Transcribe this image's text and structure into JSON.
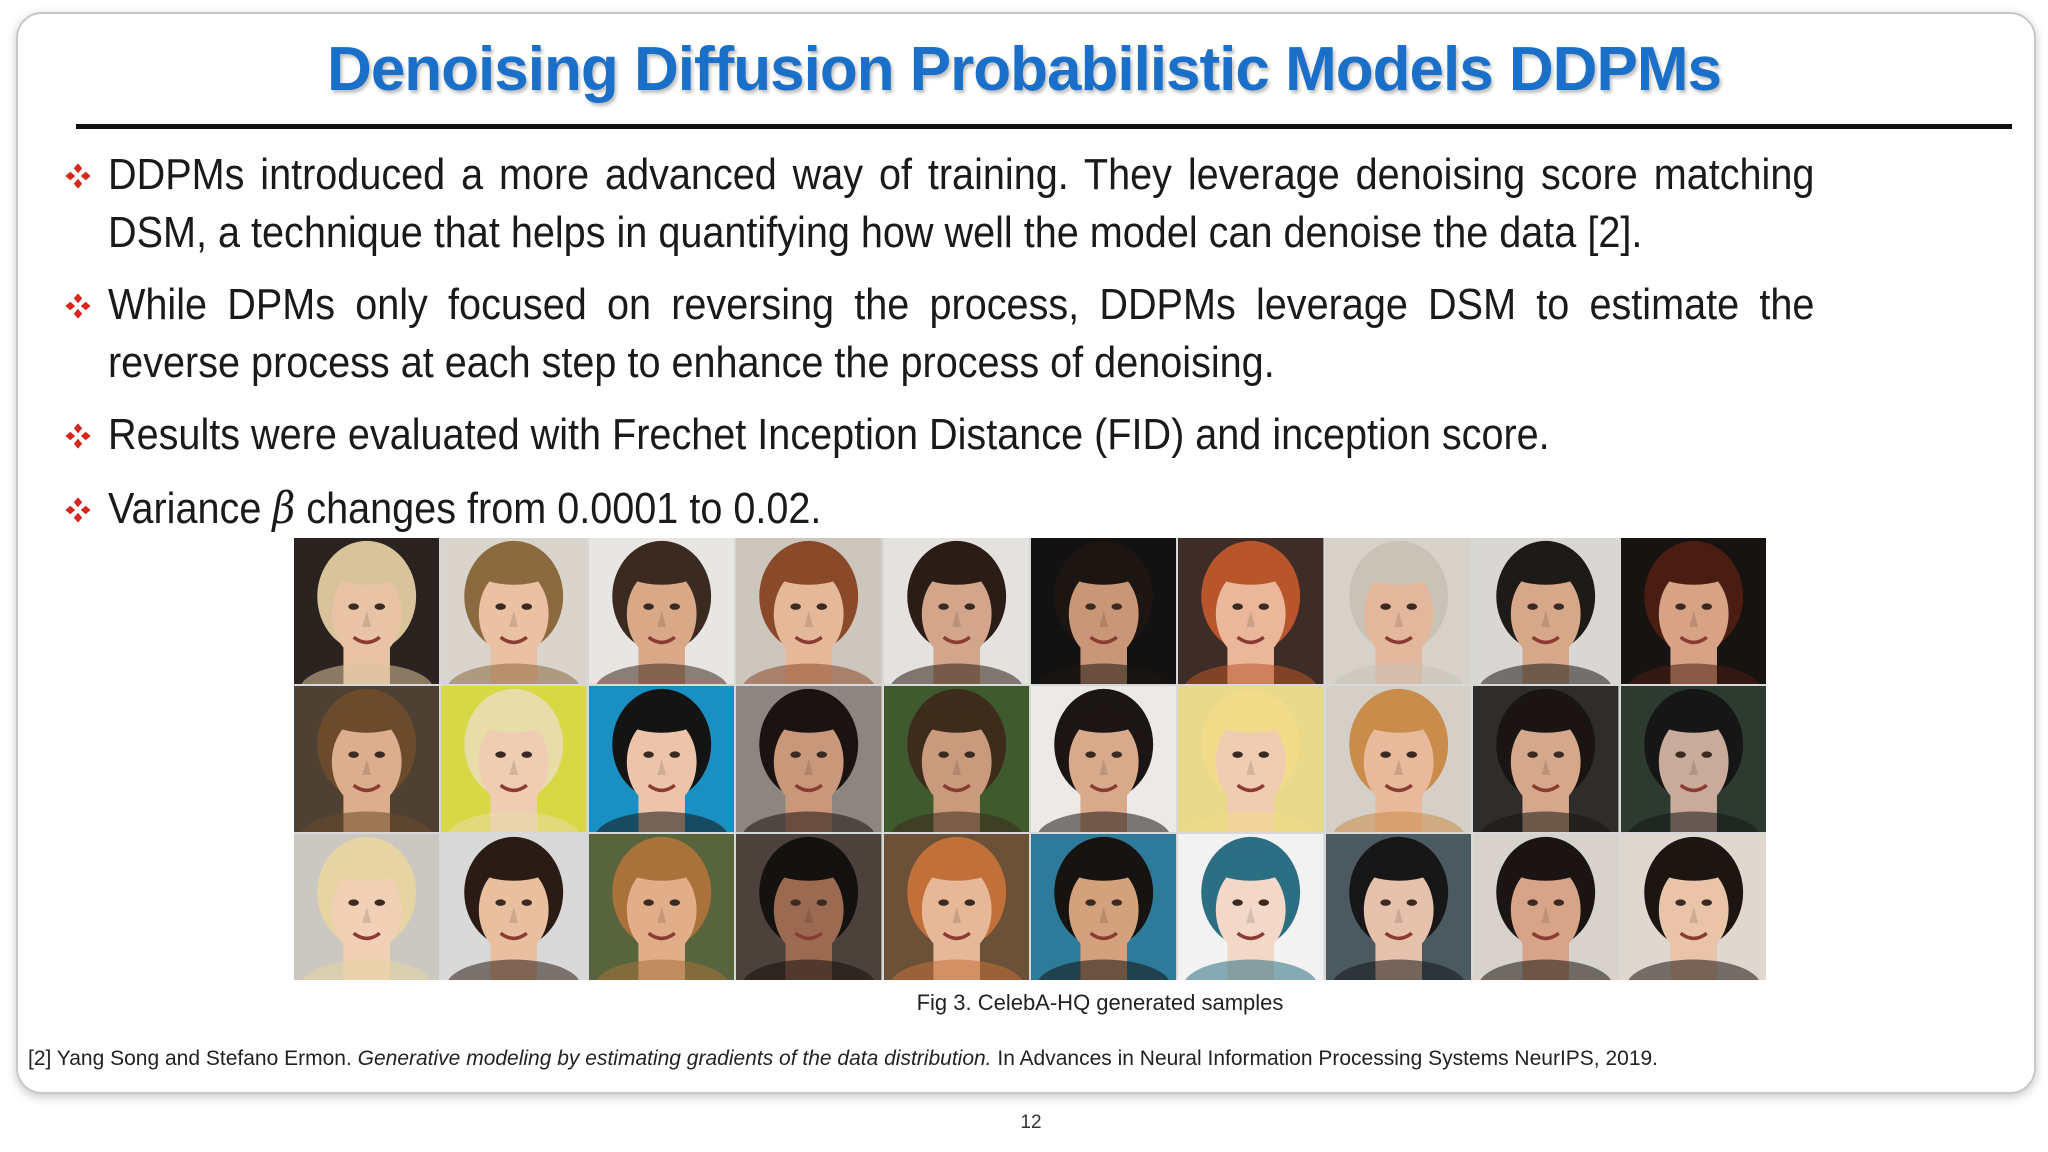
{
  "slide": {
    "title": "Denoising Diffusion Probabilistic Models DDPMs",
    "bullets": [
      {
        "text": "DDPMs introduced a more advanced way of training. They leverage denoising score matching DSM, a technique that helps in quantifying how well the model can denoise the data [2]."
      },
      {
        "text": "While DPMs only focused on reversing the process, DDPMs leverage DSM to estimate the reverse process at each step to enhance the process of denoising."
      },
      {
        "text": "Results were evaluated with Frechet Inception Distance (FID) and inception score."
      },
      {
        "pre": "Variance",
        "symbol": "β",
        "post": "changes from 0.0001 to 0.02."
      }
    ],
    "figure": {
      "caption": "Fig 3. CelebA-HQ generated samples",
      "rows": 3,
      "columns": 10,
      "samples": [
        {
          "bg": "#2a2320",
          "skin": "#e9c3a6",
          "hair": "#d8c39a"
        },
        {
          "bg": "#d9d4cc",
          "skin": "#eac1a2",
          "hair": "#8a6a3e"
        },
        {
          "bg": "#e8e6e2",
          "skin": "#d9a887",
          "hair": "#3a2a1f"
        },
        {
          "bg": "#ccc6bd",
          "skin": "#e6b89a",
          "hair": "#8a4a2a"
        },
        {
          "bg": "#e4e2de",
          "skin": "#d3a58a",
          "hair": "#2b1d16"
        },
        {
          "bg": "#121212",
          "skin": "#c99677",
          "hair": "#1d1511"
        },
        {
          "bg": "#3e2d26",
          "skin": "#eab79b",
          "hair": "#b8552a"
        },
        {
          "bg": "#d6d2c9",
          "skin": "#e2b79c",
          "hair": "#c9c3b7"
        },
        {
          "bg": "#d9d7d3",
          "skin": "#d6a889",
          "hair": "#1e1a18"
        },
        {
          "bg": "#161311",
          "skin": "#d8a285",
          "hair": "#4a1d12"
        },
        {
          "bg": "#4e4032",
          "skin": "#dcae8d",
          "hair": "#6b4b2c"
        },
        {
          "bg": "#d7d844",
          "skin": "#efcdb2",
          "hair": "#e8dca8"
        },
        {
          "bg": "#1a8fc2",
          "skin": "#ecc4aa",
          "hair": "#141414"
        },
        {
          "bg": "#8c8680",
          "skin": "#c9977a",
          "hair": "#1a1311"
        },
        {
          "bg": "#3f5a2c",
          "skin": "#c99a7c",
          "hair": "#3d2b1c"
        },
        {
          "bg": "#eceae6",
          "skin": "#d9a98b",
          "hair": "#1b1614"
        },
        {
          "bg": "#e9d98a",
          "skin": "#f0cdb2",
          "hair": "#f2dc8a"
        },
        {
          "bg": "#d4d0c8",
          "skin": "#e8b99a",
          "hair": "#c98c4a"
        },
        {
          "bg": "#2e2d2c",
          "skin": "#d5a88c",
          "hair": "#1a1512"
        },
        {
          "bg": "#2d3a2f",
          "skin": "#c8ab9a",
          "hair": "#161616"
        },
        {
          "bg": "#cbc8c1",
          "skin": "#f1d0b6",
          "hair": "#e6d4a2"
        },
        {
          "bg": "#d9d9d9",
          "skin": "#e8bf9f",
          "hair": "#2a1c14"
        },
        {
          "bg": "#58643c",
          "skin": "#e2ae8a",
          "hair": "#a8723a"
        },
        {
          "bg": "#4c423b",
          "skin": "#9c6a50",
          "hair": "#141111"
        },
        {
          "bg": "#6b5138",
          "skin": "#e7b898",
          "hair": "#c2703a"
        },
        {
          "bg": "#2d7a9a",
          "skin": "#d3a17c",
          "hair": "#161310"
        },
        {
          "bg": "#f2f2f2",
          "skin": "#f3d8c8",
          "hair": "#2d6f82"
        },
        {
          "bg": "#4a5a60",
          "skin": "#e6c2ac",
          "hair": "#171717"
        },
        {
          "bg": "#d7d3cc",
          "skin": "#d8a489",
          "hair": "#1a1412"
        },
        {
          "bg": "#dfd8cf",
          "skin": "#e9c4a8",
          "hair": "#1c1613"
        }
      ]
    },
    "reference": {
      "prefix": "[2] Yang Song and Stefano Ermon.",
      "title": "Generative modeling by estimating gradients of the data distribution.",
      "suffix": "In Advances in Neural Information Processing Systems NeurIPS, 2019."
    },
    "page_number": "12",
    "colors": {
      "title": "#1a6fc8",
      "bullet": "#d9261c",
      "rule": "#111111"
    }
  }
}
